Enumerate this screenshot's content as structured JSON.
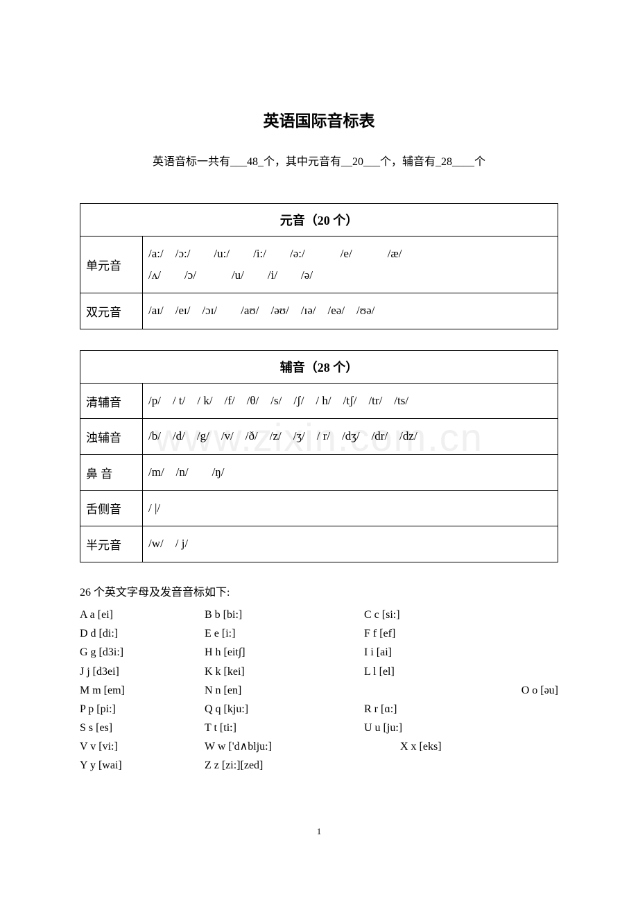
{
  "title": "英语国际音标表",
  "subtitle": "英语音标一共有___48_个，其中元音有__20___个，辅音有_28____个",
  "watermark": "www.zixin.com.cn",
  "vowel_table": {
    "header": "元音（20 个）",
    "rows": [
      {
        "label": "单元音",
        "content": "/a:/ /ɔ:/  /u:/  /i:/  /ə:/   /e/   /æ/\n/ʌ/  /ɔ/   /u/  /i/  /ə/"
      },
      {
        "label": "双元音",
        "content": "/aɪ/ /eɪ/ /ɔɪ/  /aʊ/ /əʊ/ /ɪə/ /eə/ /ʊə/"
      }
    ]
  },
  "consonant_table": {
    "header": "辅音（28 个）",
    "rows": [
      {
        "label": "清辅音",
        "content": "/p/ / t/ / k/ /f/ /θ/ /s/ /ʃ/ / h/ /tʃ/ /tr/ /ts/"
      },
      {
        "label": "浊辅音",
        "content": "/b/ /d/ /g/ /v/ /ð/ /z/ /ʒ/ / r/ /dʒ/ /dr/ /dz/"
      },
      {
        "label": "鼻 音",
        "content": "/m/ /n/  /ŋ/"
      },
      {
        "label": "舌侧音",
        "content": "/ |/"
      },
      {
        "label": "半元音",
        "content": "/w/ / j/"
      }
    ]
  },
  "letters": {
    "intro": "26 个英文字母及发音音标如下:",
    "rows": [
      {
        "c1": "A a [ei]",
        "c2": "B b [bi:]",
        "c3": "C c [si:]",
        "c4": ""
      },
      {
        "c1": "D d [di:]",
        "c2": "E e [i:]",
        "c3": "F f [ef]",
        "c4": ""
      },
      {
        "c1": "G g [d3i:]",
        "c2": "H h [eit∫]",
        "c3": "I i [ai]",
        "c4": ""
      },
      {
        "c1": "J j [d3ei]",
        "c2": "K k [kei]",
        "c3": "L l [el]",
        "c4": ""
      },
      {
        "c1": "M m [em]",
        "c2": "N n [en]",
        "c3": "",
        "c4": "O o [əu]"
      },
      {
        "c1": "P p [pi:]",
        "c2": "Q q [kju:]",
        "c3": "R r [ɑ:]",
        "c4": ""
      },
      {
        "c1": "S s [es]",
        "c2": "T t [ti:]",
        "c3": "U u [ju:]",
        "c4": ""
      },
      {
        "c1": "V v [vi:]",
        "c2": "W w ['d∧blju:]",
        "c3": "X x [eks]",
        "c4": "",
        "special": true
      },
      {
        "c1": "Y y [wai]",
        "c2": "Z z [zi:][zed]",
        "c3": "",
        "c4": ""
      }
    ]
  },
  "page_number": "1"
}
